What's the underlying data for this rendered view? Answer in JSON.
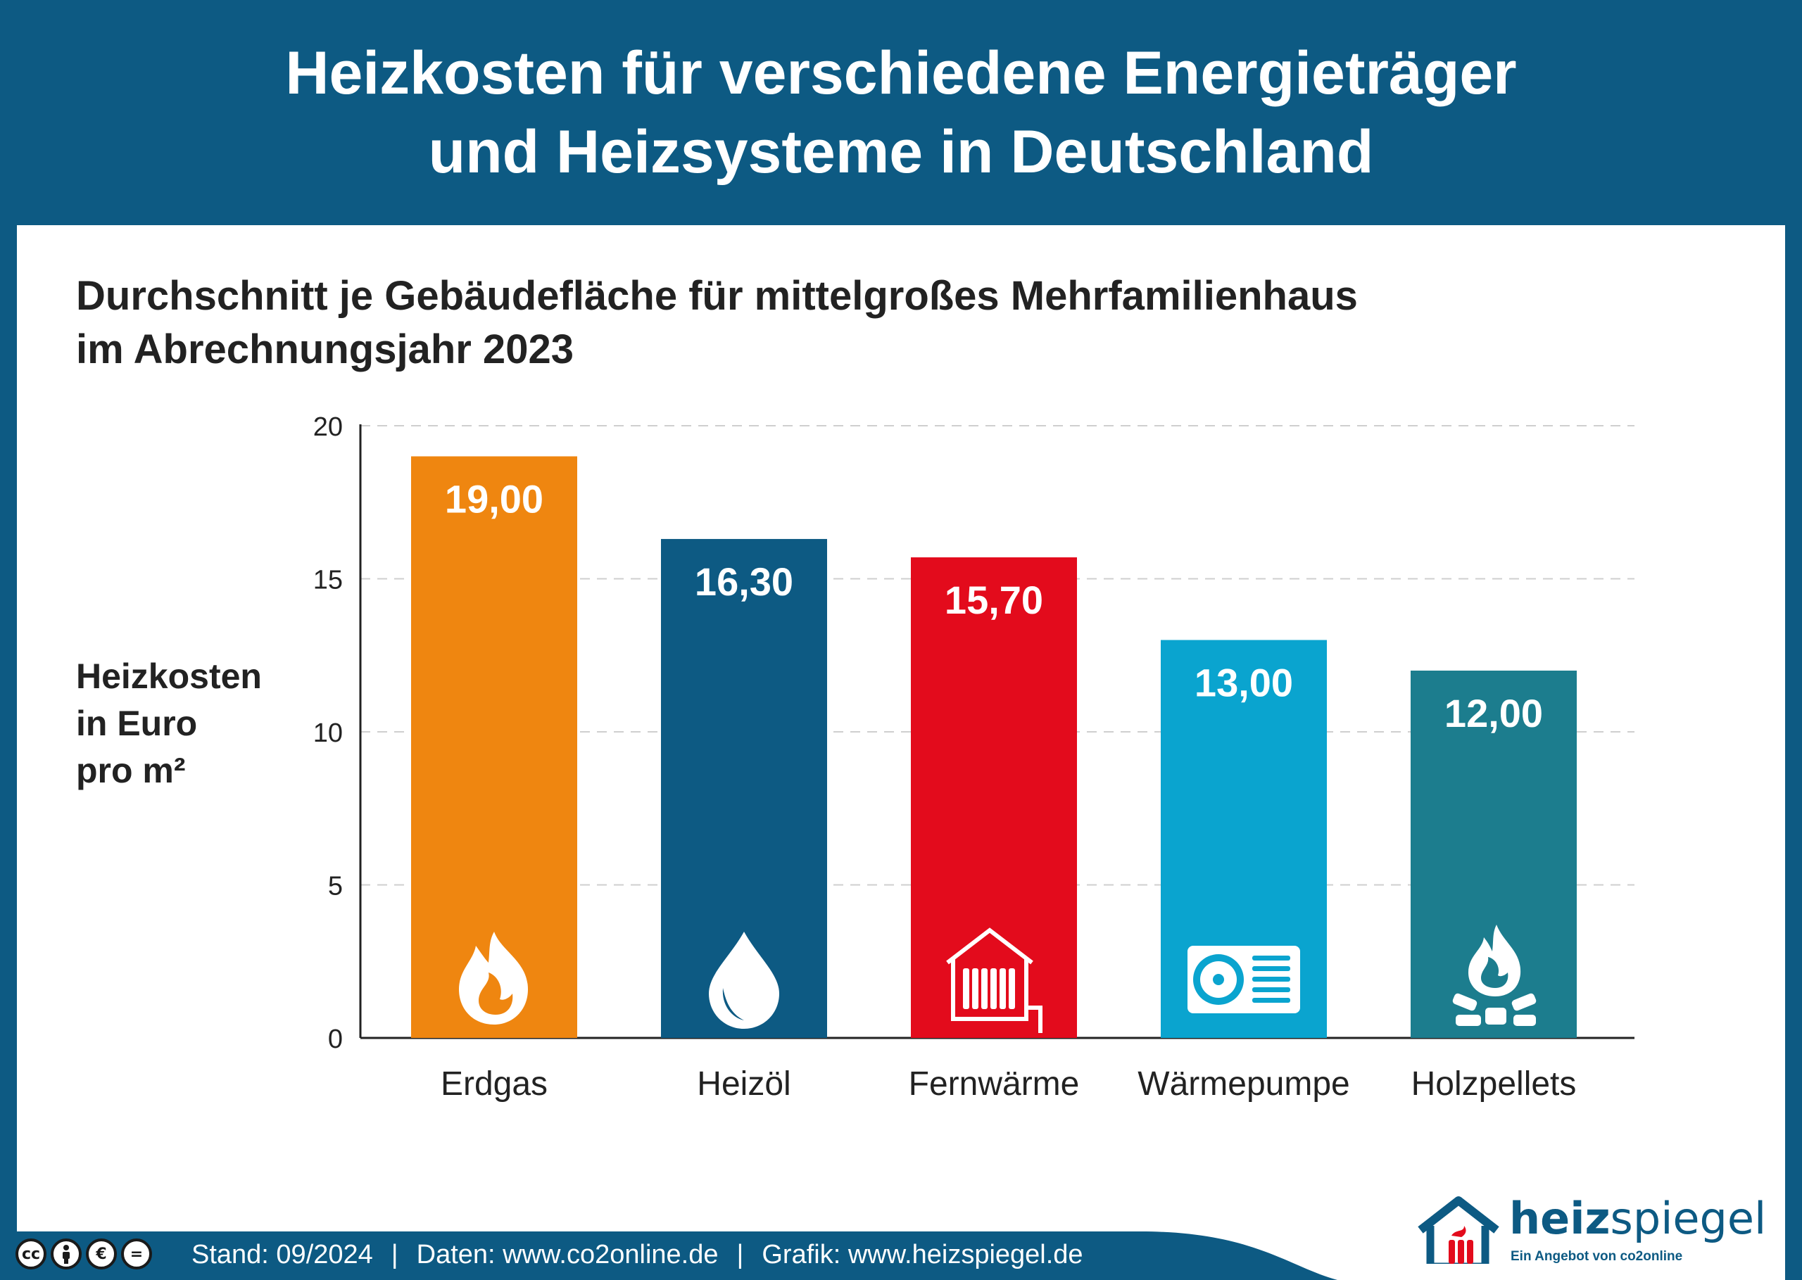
{
  "header": {
    "title_line1": "Heizkosten für verschiedene Energieträger",
    "title_line2": "und Heizsysteme in Deutschland"
  },
  "subtitle": {
    "line1": "Durchschnitt je Gebäudefläche für mittelgroßes Mehrfamilienhaus",
    "line2": "im Abrechnungsjahr 2023"
  },
  "ylabel": {
    "line1": "Heizkosten",
    "line2": "in Euro",
    "line3": "pro m²"
  },
  "chart_data": {
    "type": "bar",
    "title": "Heizkosten für verschiedene Energieträger und Heizsysteme in Deutschland",
    "subtitle": "Durchschnitt je Gebäudefläche für mittelgroßes Mehrfamilienhaus im Abrechnungsjahr 2023",
    "ylabel": "Heizkosten in Euro pro m²",
    "xlabel": "",
    "ylim": [
      0,
      20
    ],
    "yticks": [
      0,
      5,
      10,
      15,
      20
    ],
    "ytick_labels": [
      "0",
      "5",
      "10",
      "15",
      "20"
    ],
    "grid": "horizontal dashed",
    "categories": [
      "Erdgas",
      "Heizöl",
      "Fernwärme",
      "Wärmepumpe",
      "Holzpellets"
    ],
    "values": [
      19.0,
      16.3,
      15.7,
      13.0,
      12.0
    ],
    "value_labels": [
      "19,00",
      "16,30",
      "15,70",
      "13,00",
      "12,00"
    ],
    "colors": [
      "#ef8610",
      "#0d5a83",
      "#e30b1c",
      "#0aa4cf",
      "#1c7d8e"
    ],
    "icons": [
      "flame-icon",
      "oil-drop-icon",
      "radiator-icon",
      "heat-pump-icon",
      "pellet-fire-icon"
    ]
  },
  "footer": {
    "license_badges": [
      "cc",
      "by",
      "nc",
      "nd"
    ],
    "stand": "Stand: 09/2024",
    "daten": "Daten: www.co2online.de",
    "grafik": "Grafik: www.heizspiegel.de",
    "separator": "|"
  },
  "logo": {
    "word_bold": "heiz",
    "word_light": "spiegel",
    "tagline": "Ein Angebot von co2online"
  },
  "colors": {
    "brand_blue": "#0d5a83",
    "text_dark": "#222222",
    "grid": "#cccccc"
  }
}
